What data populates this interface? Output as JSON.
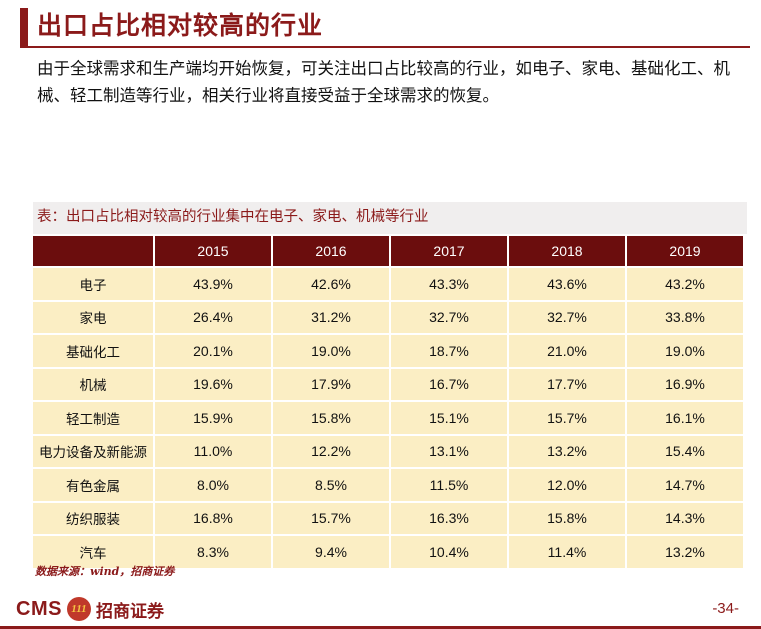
{
  "title": "出口占比相对较高的行业",
  "body_text": "由于全球需求和生产端均开始恢复，可关注出口占比较高的行业，如电子、家电、基础化工、机械、轻工制造等行业，相关行业将直接受益于全球需求的恢复。",
  "table": {
    "caption": "表：出口占比相对较高的行业集中在电子、家电、机械等行业",
    "headers": [
      "",
      "2015",
      "2016",
      "2017",
      "2018",
      "2019"
    ],
    "rows": [
      [
        "电子",
        "43.9%",
        "42.6%",
        "43.3%",
        "43.6%",
        "43.2%"
      ],
      [
        "家电",
        "26.4%",
        "31.2%",
        "32.7%",
        "32.7%",
        "33.8%"
      ],
      [
        "基础化工",
        "20.1%",
        "19.0%",
        "18.7%",
        "21.0%",
        "19.0%"
      ],
      [
        "机械",
        "19.6%",
        "17.9%",
        "16.7%",
        "17.7%",
        "16.9%"
      ],
      [
        "轻工制造",
        "15.9%",
        "15.8%",
        "15.1%",
        "15.7%",
        "16.1%"
      ],
      [
        "电力设备及新能源",
        "11.0%",
        "12.2%",
        "13.1%",
        "13.2%",
        "15.4%"
      ],
      [
        "有色金属",
        "8.0%",
        "8.5%",
        "11.5%",
        "12.0%",
        "14.7%"
      ],
      [
        "纺织服装",
        "16.8%",
        "15.7%",
        "16.3%",
        "15.8%",
        "14.3%"
      ],
      [
        "汽车",
        "8.3%",
        "9.4%",
        "10.4%",
        "11.4%",
        "13.2%"
      ]
    ]
  },
  "source": "数据来源：wind，招商证券",
  "footer": {
    "logo_text": "CMS",
    "logo_emblem": "111",
    "logo_cn": "招商证券",
    "page_number": "-34-"
  },
  "colors": {
    "brand": "#8b1a1a",
    "header_fill": "#6b0d0d",
    "cell_fill": "#fbeec4",
    "caption_fill": "#f0eeee"
  }
}
